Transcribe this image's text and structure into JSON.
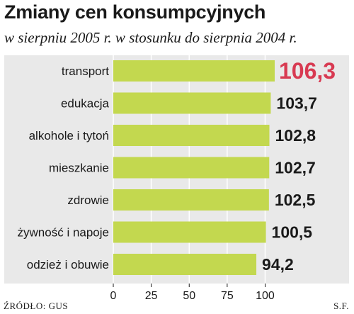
{
  "title": "Zmiany cen konsumpcyjnych",
  "subtitle": "w sierpniu 2005 r. w stosunku do sierpnia 2004 r.",
  "source": "ŹRÓDŁO: GUS",
  "author": "S.F.",
  "colors": {
    "bar": "#c3d84f",
    "panel": "#e9e9e9",
    "highlight_value": "#d83a52",
    "value": "#1a1a1a"
  },
  "chart_data": {
    "type": "bar",
    "orientation": "horizontal",
    "categories": [
      "transport",
      "edukacja",
      "alkohole i tytoń",
      "mieszkanie",
      "zdrowie",
      "żywność i napoje",
      "odzież i obuwie"
    ],
    "values": [
      106.3,
      103.7,
      102.8,
      102.7,
      102.5,
      100.5,
      94.2
    ],
    "value_labels": [
      "106,3",
      "103,7",
      "102,8",
      "102,7",
      "102,5",
      "100,5",
      "94,2"
    ],
    "highlight_index": 0,
    "xlim": [
      0,
      106.3
    ],
    "xticks": [
      0,
      25,
      50,
      75,
      100
    ],
    "xtick_labels": [
      "0",
      "25",
      "50",
      "75",
      "100"
    ],
    "grid": true
  }
}
